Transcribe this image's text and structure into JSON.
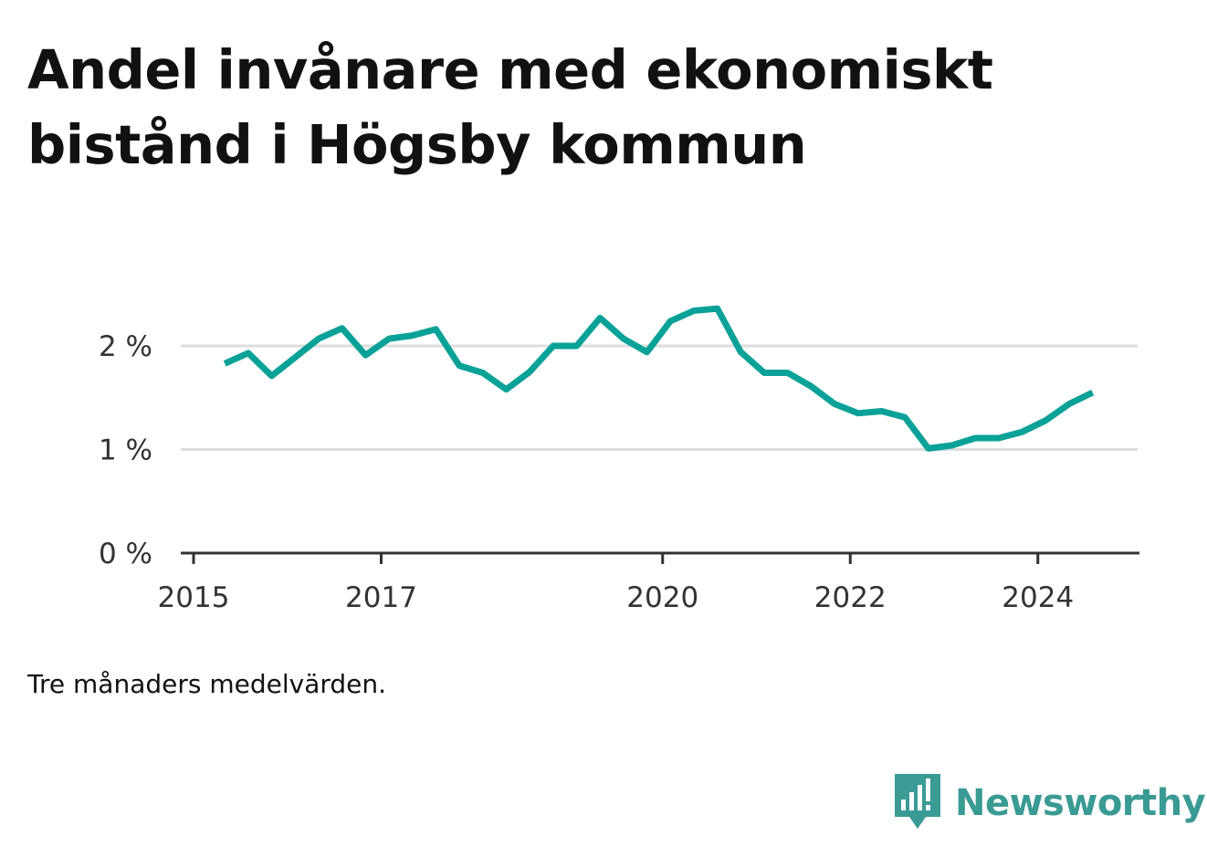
{
  "title": "Andel invånare med ekonomiskt bistånd i Högsby kommun",
  "caption": "Tre månaders medelvärden.",
  "brand": {
    "name": "Newsworthy",
    "color": "#3a9a94",
    "icon": "chat-bar-chart-icon"
  },
  "chart_data": {
    "type": "line",
    "title": "Andel invånare med ekonomiskt bistånd i Högsby kommun",
    "xlabel": "",
    "ylabel": "",
    "x_ticks": [
      "2015",
      "2017",
      "2020",
      "2022",
      "2024"
    ],
    "y_ticks": [
      "0 %",
      "1 %",
      "2 %"
    ],
    "ylim": [
      0,
      2.5
    ],
    "grid": true,
    "line_color": "#0aa298",
    "series": [
      {
        "name": "",
        "points": [
          {
            "x": "2015-05",
            "y": 1.83
          },
          {
            "x": "2015-08",
            "y": 1.93
          },
          {
            "x": "2015-11",
            "y": 1.71
          },
          {
            "x": "2016-02",
            "y": 1.89
          },
          {
            "x": "2016-05",
            "y": 2.07
          },
          {
            "x": "2016-08",
            "y": 2.17
          },
          {
            "x": "2016-11",
            "y": 1.91
          },
          {
            "x": "2017-02",
            "y": 2.07
          },
          {
            "x": "2017-05",
            "y": 2.1
          },
          {
            "x": "2017-08",
            "y": 2.16
          },
          {
            "x": "2017-11",
            "y": 1.81
          },
          {
            "x": "2018-02",
            "y": 1.74
          },
          {
            "x": "2018-05",
            "y": 1.58
          },
          {
            "x": "2018-08",
            "y": 1.75
          },
          {
            "x": "2018-11",
            "y": 2.0
          },
          {
            "x": "2019-02",
            "y": 2.0
          },
          {
            "x": "2019-05",
            "y": 2.27
          },
          {
            "x": "2019-08",
            "y": 2.07
          },
          {
            "x": "2019-11",
            "y": 1.94
          },
          {
            "x": "2020-02",
            "y": 2.24
          },
          {
            "x": "2020-05",
            "y": 2.34
          },
          {
            "x": "2020-08",
            "y": 2.36
          },
          {
            "x": "2020-11",
            "y": 1.94
          },
          {
            "x": "2021-02",
            "y": 1.74
          },
          {
            "x": "2021-05",
            "y": 1.74
          },
          {
            "x": "2021-08",
            "y": 1.61
          },
          {
            "x": "2021-11",
            "y": 1.44
          },
          {
            "x": "2022-02",
            "y": 1.35
          },
          {
            "x": "2022-05",
            "y": 1.37
          },
          {
            "x": "2022-08",
            "y": 1.31
          },
          {
            "x": "2022-11",
            "y": 1.01
          },
          {
            "x": "2023-02",
            "y": 1.04
          },
          {
            "x": "2023-05",
            "y": 1.11
          },
          {
            "x": "2023-08",
            "y": 1.11
          },
          {
            "x": "2023-11",
            "y": 1.17
          },
          {
            "x": "2024-02",
            "y": 1.28
          },
          {
            "x": "2024-05",
            "y": 1.44
          },
          {
            "x": "2024-08",
            "y": 1.55
          }
        ]
      }
    ]
  }
}
